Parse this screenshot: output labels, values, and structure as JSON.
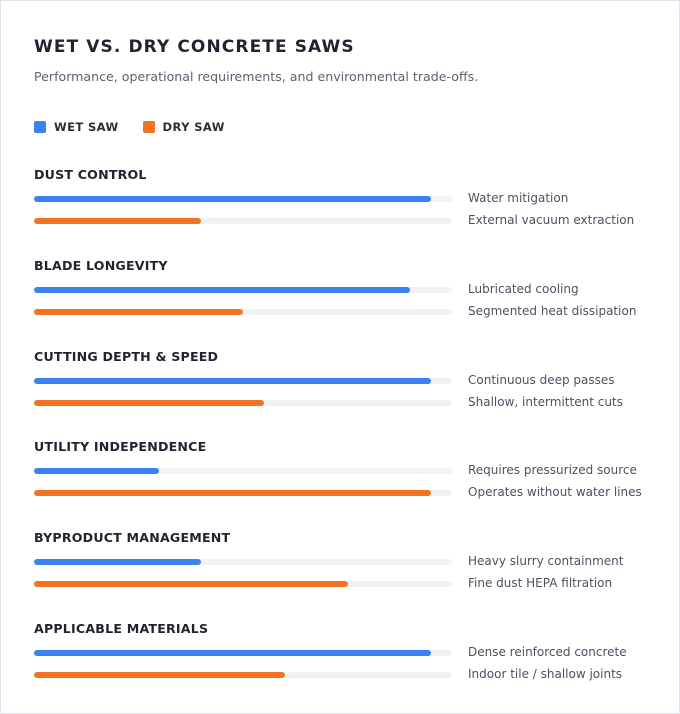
{
  "colors": {
    "wet": "#3b82f0",
    "dry": "#f07423",
    "track": "#f0f2f6"
  },
  "chart_data": {
    "type": "bar",
    "title": "WET VS. DRY CONCRETE SAWS",
    "subtitle": "Performance, operational requirements, and environmental trade-offs.",
    "legend": {
      "placement": "top-left",
      "entries": [
        {
          "key": "wet",
          "label": "WET SAW"
        },
        {
          "key": "dry",
          "label": "DRY SAW"
        }
      ]
    },
    "ylim": [
      0,
      100
    ],
    "categories": [
      "DUST CONTROL",
      "BLADE LONGEVITY",
      "CUTTING DEPTH & SPEED",
      "UTILITY INDEPENDENCE",
      "BYPRODUCT MANAGEMENT",
      "APPLICABLE MATERIALS"
    ],
    "series": [
      {
        "name": "WET SAW",
        "key": "wet",
        "values": [
          95,
          90,
          95,
          30,
          40,
          95
        ],
        "notes": [
          "Water mitigation",
          "Lubricated cooling",
          "Continuous deep passes",
          "Requires pressurized source",
          "Heavy slurry containment",
          "Dense reinforced concrete"
        ]
      },
      {
        "name": "DRY SAW",
        "key": "dry",
        "values": [
          40,
          50,
          55,
          95,
          75,
          60
        ],
        "notes": [
          "External vacuum extraction",
          "Segmented heat dissipation",
          "Shallow, intermittent cuts",
          "Operates without water lines",
          "Fine dust HEPA filtration",
          "Indoor tile / shallow joints"
        ]
      }
    ]
  }
}
